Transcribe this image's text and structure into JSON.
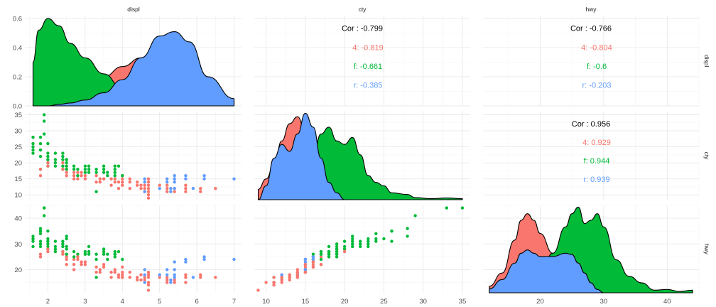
{
  "chart_data": {
    "type": "scatter",
    "title": "",
    "variables": [
      "displ",
      "cty",
      "hwy"
    ],
    "groups": [
      "4",
      "f",
      "r"
    ],
    "colors": {
      "4": "#F8766D",
      "f": "#00BA38",
      "r": "#619CFF"
    },
    "axes": {
      "displ": {
        "range": [
          1.4,
          7.2
        ],
        "ticks": [
          2,
          3,
          4,
          5,
          6,
          7
        ]
      },
      "cty": {
        "range": [
          8.5,
          36
        ],
        "ticks": [
          10,
          15,
          20,
          25,
          30,
          35
        ]
      },
      "hwy": {
        "range": [
          11,
          45
        ],
        "ticks": [
          20,
          30,
          40
        ]
      }
    },
    "density_axis": {
      "range": [
        0,
        0.62
      ],
      "ticks": [
        "0.0",
        "0.2",
        "0.4",
        "0.6"
      ]
    },
    "correlations": [
      {
        "row": "displ",
        "col": "cty",
        "overall": "Cor : -0.799",
        "groups": [
          "4: -0.819",
          "f: -0.661",
          "r: -0.385"
        ]
      },
      {
        "row": "displ",
        "col": "hwy",
        "overall": "Cor : -0.766",
        "groups": [
          "4: -0.804",
          "f: -0.6",
          "r: -0.203"
        ]
      },
      {
        "row": "cty",
        "col": "hwy",
        "overall": "Cor : 0.956",
        "groups": [
          "4: 0.929",
          "f: 0.944",
          "r: 0.939"
        ]
      }
    ],
    "densities": {
      "displ": {
        "x": [
          1.6,
          1.75,
          2.0,
          2.3,
          2.6,
          3.0,
          3.5,
          4.0,
          4.5,
          5.0,
          5.4,
          5.8,
          6.3,
          7.0
        ],
        "series": {
          "4": [
            0.01,
            0.02,
            0.04,
            0.07,
            0.1,
            0.14,
            0.2,
            0.27,
            0.33,
            0.36,
            0.35,
            0.27,
            0.14,
            0.04
          ],
          "f": [
            0.3,
            0.52,
            0.6,
            0.55,
            0.43,
            0.33,
            0.22,
            0.12,
            0.05,
            0.02,
            0.01,
            0.0,
            0.0,
            0.0
          ],
          "r": [
            0.0,
            0.0,
            0.0,
            0.01,
            0.02,
            0.04,
            0.09,
            0.18,
            0.33,
            0.48,
            0.51,
            0.44,
            0.2,
            0.05
          ]
        }
      },
      "cty": {
        "x": [
          9,
          10,
          11,
          12,
          13,
          14,
          15,
          16,
          17,
          18,
          19,
          20,
          21,
          22,
          23,
          24,
          25,
          26,
          28,
          29,
          31,
          33,
          35
        ],
        "series": {
          "4": [
            0.03,
            0.06,
            0.1,
            0.17,
            0.22,
            0.24,
            0.2,
            0.13,
            0.07,
            0.04,
            0.02,
            0.01,
            0.0,
            0.0,
            0.0,
            0.0,
            0.0,
            0.0,
            0.0,
            0.0,
            0.0,
            0.0,
            0.0
          ],
          "f": [
            0.0,
            0.0,
            0.0,
            0.0,
            0.01,
            0.03,
            0.07,
            0.13,
            0.19,
            0.21,
            0.17,
            0.16,
            0.18,
            0.13,
            0.07,
            0.05,
            0.04,
            0.02,
            0.015,
            0.006,
            0.003,
            0.005,
            0.003
          ],
          "r": [
            0.0,
            0.04,
            0.12,
            0.16,
            0.14,
            0.19,
            0.25,
            0.21,
            0.12,
            0.05,
            0.02,
            0.0,
            0.0,
            0.0,
            0.0,
            0.0,
            0.0,
            0.0,
            0.0,
            0.0,
            0.0,
            0.0,
            0.0
          ]
        }
      },
      "hwy": {
        "x": [
          12,
          14,
          16,
          17,
          18,
          19,
          20,
          22,
          24,
          25,
          26,
          27,
          28,
          29,
          30,
          32,
          34,
          36,
          38,
          40,
          42,
          44
        ],
        "series": {
          "4": [
            0.01,
            0.03,
            0.08,
            0.11,
            0.12,
            0.11,
            0.09,
            0.06,
            0.04,
            0.025,
            0.015,
            0.008,
            0.004,
            0.002,
            0.0,
            0.0,
            0.0,
            0.0,
            0.0,
            0.0,
            0.0,
            0.0
          ],
          "f": [
            0.0,
            0.0,
            0.0,
            0.005,
            0.01,
            0.02,
            0.03,
            0.06,
            0.1,
            0.12,
            0.13,
            0.105,
            0.11,
            0.12,
            0.1,
            0.05,
            0.025,
            0.015,
            0.004,
            0.005,
            0.002,
            0.004
          ],
          "r": [
            0.006,
            0.02,
            0.045,
            0.06,
            0.065,
            0.06,
            0.055,
            0.055,
            0.06,
            0.058,
            0.045,
            0.03,
            0.015,
            0.005,
            0.0,
            0.0,
            0.0,
            0.0,
            0.0,
            0.0,
            0.0,
            0.0
          ]
        }
      }
    },
    "points": [
      {
        "g": "f",
        "displ": 1.6,
        "cty": 28,
        "hwy": 33
      },
      {
        "g": "f",
        "displ": 1.6,
        "cty": 25,
        "hwy": 32
      },
      {
        "g": "f",
        "displ": 1.6,
        "cty": 24,
        "hwy": 32
      },
      {
        "g": "f",
        "displ": 1.6,
        "cty": 23,
        "hwy": 29
      },
      {
        "g": "f",
        "displ": 1.8,
        "cty": 28,
        "hwy": 36
      },
      {
        "g": "f",
        "displ": 1.8,
        "cty": 26,
        "hwy": 35
      },
      {
        "g": "f",
        "displ": 1.8,
        "cty": 24,
        "hwy": 34
      },
      {
        "g": "f",
        "displ": 1.8,
        "cty": 22,
        "hwy": 30
      },
      {
        "g": "f",
        "displ": 1.8,
        "cty": 18,
        "hwy": 29
      },
      {
        "g": "4",
        "displ": 1.8,
        "cty": 16,
        "hwy": 25
      },
      {
        "g": "4",
        "displ": 1.8,
        "cty": 18,
        "hwy": 26
      },
      {
        "g": "f",
        "displ": 1.9,
        "cty": 33,
        "hwy": 44
      },
      {
        "g": "f",
        "displ": 1.9,
        "cty": 35,
        "hwy": 44
      },
      {
        "g": "f",
        "displ": 1.9,
        "cty": 29,
        "hwy": 41
      },
      {
        "g": "f",
        "displ": 2.0,
        "cty": 21,
        "hwy": 29
      },
      {
        "g": "f",
        "displ": 2.0,
        "cty": 20,
        "hwy": 31
      },
      {
        "g": "f",
        "displ": 2.0,
        "cty": 19,
        "hwy": 28
      },
      {
        "g": "f",
        "displ": 2.0,
        "cty": 21,
        "hwy": 30
      },
      {
        "g": "4",
        "displ": 2.0,
        "cty": 19,
        "hwy": 27
      },
      {
        "g": "4",
        "displ": 2.0,
        "cty": 20,
        "hwy": 28
      },
      {
        "g": "f",
        "displ": 2.2,
        "cty": 21,
        "hwy": 29
      },
      {
        "g": "f",
        "displ": 2.2,
        "cty": 19,
        "hwy": 27
      },
      {
        "g": "f",
        "displ": 2.2,
        "cty": 20,
        "hwy": 28
      },
      {
        "g": "f",
        "displ": 2.4,
        "cty": 21,
        "hwy": 31
      },
      {
        "g": "f",
        "displ": 2.4,
        "cty": 19,
        "hwy": 30
      },
      {
        "g": "f",
        "displ": 2.4,
        "cty": 18,
        "hwy": 27
      },
      {
        "g": "4",
        "displ": 2.4,
        "cty": 20,
        "hwy": 27
      },
      {
        "g": "4",
        "displ": 2.4,
        "cty": 18,
        "hwy": 26
      },
      {
        "g": "f",
        "displ": 2.5,
        "cty": 20,
        "hwy": 29
      },
      {
        "g": "4",
        "displ": 2.5,
        "cty": 19,
        "hwy": 26
      },
      {
        "g": "4",
        "displ": 2.5,
        "cty": 18,
        "hwy": 25
      },
      {
        "g": "4",
        "displ": 2.5,
        "cty": 17,
        "hwy": 24
      },
      {
        "g": "f",
        "displ": 2.5,
        "cty": 21,
        "hwy": 33
      },
      {
        "g": "f",
        "displ": 2.7,
        "cty": 18,
        "hwy": 27
      },
      {
        "g": "4",
        "displ": 2.7,
        "cty": 16,
        "hwy": 24
      },
      {
        "g": "4",
        "displ": 2.7,
        "cty": 15,
        "hwy": 20
      },
      {
        "g": "4",
        "displ": 2.7,
        "cty": 17,
        "hwy": 22
      },
      {
        "g": "f",
        "displ": 2.8,
        "cty": 16,
        "hwy": 26
      },
      {
        "g": "f",
        "displ": 2.8,
        "cty": 18,
        "hwy": 25
      },
      {
        "g": "4",
        "displ": 2.8,
        "cty": 15,
        "hwy": 24
      },
      {
        "g": "4",
        "displ": 2.8,
        "cty": 17,
        "hwy": 25
      },
      {
        "g": "f",
        "displ": 3.0,
        "cty": 17,
        "hwy": 26
      },
      {
        "g": "f",
        "displ": 3.0,
        "cty": 18,
        "hwy": 27
      },
      {
        "g": "4",
        "displ": 3.0,
        "cty": 15,
        "hwy": 22
      },
      {
        "g": "4",
        "displ": 3.0,
        "cty": 16,
        "hwy": 23
      },
      {
        "g": "f",
        "displ": 3.1,
        "cty": 18,
        "hwy": 26
      },
      {
        "g": "f",
        "displ": 3.1,
        "cty": 17,
        "hwy": 27
      },
      {
        "g": "f",
        "displ": 3.3,
        "cty": 18,
        "hwy": 26
      },
      {
        "g": "f",
        "displ": 3.3,
        "cty": 17,
        "hwy": 24
      },
      {
        "g": "4",
        "displ": 3.3,
        "cty": 14,
        "hwy": 19
      },
      {
        "g": "4",
        "displ": 3.3,
        "cty": 16,
        "hwy": 21
      },
      {
        "g": "f",
        "displ": 3.3,
        "cty": 11,
        "hwy": 17
      },
      {
        "g": "f",
        "displ": 3.5,
        "cty": 19,
        "hwy": 28
      },
      {
        "g": "f",
        "displ": 3.5,
        "cty": 18,
        "hwy": 26
      },
      {
        "g": "4",
        "displ": 3.5,
        "cty": 15,
        "hwy": 21
      },
      {
        "g": "f",
        "displ": 3.6,
        "cty": 17,
        "hwy": 26
      },
      {
        "g": "f",
        "displ": 3.6,
        "cty": 16,
        "hwy": 24
      },
      {
        "g": "f",
        "displ": 3.8,
        "cty": 18,
        "hwy": 27
      },
      {
        "g": "f",
        "displ": 3.8,
        "cty": 17,
        "hwy": 26
      },
      {
        "g": "f",
        "displ": 3.8,
        "cty": 16,
        "hwy": 25
      },
      {
        "g": "4",
        "displ": 3.8,
        "cty": 15,
        "hwy": 20
      },
      {
        "g": "4",
        "displ": 3.8,
        "cty": 14,
        "hwy": 19
      },
      {
        "g": "f",
        "displ": 3.9,
        "cty": 19,
        "hwy": 27
      },
      {
        "g": "4",
        "displ": 4.0,
        "cty": 15,
        "hwy": 19
      },
      {
        "g": "4",
        "displ": 4.0,
        "cty": 14,
        "hwy": 18
      },
      {
        "g": "4",
        "displ": 4.0,
        "cty": 16,
        "hwy": 21
      },
      {
        "g": "4",
        "displ": 4.0,
        "cty": 13,
        "hwy": 17
      },
      {
        "g": "f",
        "displ": 4.0,
        "cty": 16,
        "hwy": 24
      },
      {
        "g": "4",
        "displ": 4.2,
        "cty": 14,
        "hwy": 17
      },
      {
        "g": "4",
        "displ": 4.2,
        "cty": 15,
        "hwy": 19
      },
      {
        "g": "4",
        "displ": 4.4,
        "cty": 13,
        "hwy": 16
      },
      {
        "g": "4",
        "displ": 4.4,
        "cty": 14,
        "hwy": 17
      },
      {
        "g": "4",
        "displ": 4.6,
        "cty": 11,
        "hwy": 15
      },
      {
        "g": "4",
        "displ": 4.6,
        "cty": 12,
        "hwy": 16
      },
      {
        "g": "4",
        "displ": 4.6,
        "cty": 13,
        "hwy": 17
      },
      {
        "g": "r",
        "displ": 4.6,
        "cty": 15,
        "hwy": 20
      },
      {
        "g": "r",
        "displ": 4.6,
        "cty": 14,
        "hwy": 18
      },
      {
        "g": "4",
        "displ": 4.7,
        "cty": 9,
        "hwy": 12
      },
      {
        "g": "4",
        "displ": 4.7,
        "cty": 11,
        "hwy": 14
      },
      {
        "g": "4",
        "displ": 4.7,
        "cty": 12,
        "hwy": 15
      },
      {
        "g": "4",
        "displ": 4.7,
        "cty": 13,
        "hwy": 17
      },
      {
        "g": "4",
        "displ": 4.7,
        "cty": 14,
        "hwy": 18
      },
      {
        "g": "4",
        "displ": 4.7,
        "cty": 15,
        "hwy": 19
      },
      {
        "g": "r",
        "displ": 4.6,
        "cty": 11,
        "hwy": 15
      },
      {
        "g": "4",
        "displ": 5.2,
        "cty": 11,
        "hwy": 15
      },
      {
        "g": "4",
        "displ": 5.2,
        "cty": 12,
        "hwy": 16
      },
      {
        "g": "4",
        "displ": 5.2,
        "cty": 13,
        "hwy": 17
      },
      {
        "g": "r",
        "displ": 5.2,
        "cty": 15,
        "hwy": 20
      },
      {
        "g": "r",
        "displ": 5.2,
        "cty": 14,
        "hwy": 18
      },
      {
        "g": "r",
        "displ": 5.3,
        "cty": 11,
        "hwy": 15
      },
      {
        "g": "r",
        "displ": 5.3,
        "cty": 12,
        "hwy": 16
      },
      {
        "g": "4",
        "displ": 5.4,
        "cty": 11,
        "hwy": 15
      },
      {
        "g": "4",
        "displ": 5.4,
        "cty": 12,
        "hwy": 16
      },
      {
        "g": "r",
        "displ": 5.4,
        "cty": 14,
        "hwy": 18
      },
      {
        "g": "r",
        "displ": 5.4,
        "cty": 12,
        "hwy": 17
      },
      {
        "g": "r",
        "displ": 5.4,
        "cty": 15,
        "hwy": 20
      },
      {
        "g": "r",
        "displ": 5.4,
        "cty": 16,
        "hwy": 23
      },
      {
        "g": "4",
        "displ": 5.7,
        "cty": 11,
        "hwy": 15
      },
      {
        "g": "4",
        "displ": 5.7,
        "cty": 13,
        "hwy": 18
      },
      {
        "g": "r",
        "displ": 5.7,
        "cty": 16,
        "hwy": 24
      },
      {
        "g": "r",
        "displ": 5.7,
        "cty": 15,
        "hwy": 23
      },
      {
        "g": "r",
        "displ": 5.9,
        "cty": 12,
        "hwy": 17
      },
      {
        "g": "4",
        "displ": 6.1,
        "cty": 11,
        "hwy": 17
      },
      {
        "g": "4",
        "displ": 6.1,
        "cty": 12,
        "hwy": 18
      },
      {
        "g": "r",
        "displ": 6.2,
        "cty": 16,
        "hwy": 25
      },
      {
        "g": "r",
        "displ": 6.2,
        "cty": 15,
        "hwy": 24
      },
      {
        "g": "4",
        "displ": 6.5,
        "cty": 12,
        "hwy": 17
      },
      {
        "g": "r",
        "displ": 7.0,
        "cty": 15,
        "hwy": 24
      },
      {
        "g": "4",
        "displ": 4.0,
        "cty": 14,
        "hwy": 17
      },
      {
        "g": "4",
        "displ": 4.5,
        "cty": 13,
        "hwy": 18
      },
      {
        "g": "4",
        "displ": 4.5,
        "cty": 12,
        "hwy": 16
      },
      {
        "g": "4",
        "displ": 3.5,
        "cty": 15,
        "hwy": 22
      },
      {
        "g": "4",
        "displ": 3.7,
        "cty": 13,
        "hwy": 17
      },
      {
        "g": "4",
        "displ": 3.7,
        "cty": 15,
        "hwy": 19
      },
      {
        "g": "4",
        "displ": 3.9,
        "cty": 14,
        "hwy": 18
      },
      {
        "g": "4",
        "displ": 3.9,
        "cty": 12,
        "hwy": 17
      },
      {
        "g": "4",
        "displ": 3.4,
        "cty": 15,
        "hwy": 19
      },
      {
        "g": "4",
        "displ": 3.4,
        "cty": 14,
        "hwy": 20
      },
      {
        "g": "4",
        "displ": 2.9,
        "cty": 17,
        "hwy": 22
      },
      {
        "g": "4",
        "displ": 2.9,
        "cty": 16,
        "hwy": 23
      },
      {
        "g": "f",
        "displ": 2.5,
        "cty": 19,
        "hwy": 28
      },
      {
        "g": "f",
        "displ": 2.5,
        "cty": 21,
        "hwy": 32
      },
      {
        "g": "f",
        "displ": 2.0,
        "cty": 23,
        "hwy": 32
      },
      {
        "g": "f",
        "displ": 2.0,
        "cty": 22,
        "hwy": 31
      },
      {
        "g": "f",
        "displ": 1.8,
        "cty": 24,
        "hwy": 31
      },
      {
        "g": "f",
        "displ": 2.4,
        "cty": 22,
        "hwy": 29
      },
      {
        "g": "f",
        "displ": 2.7,
        "cty": 19,
        "hwy": 25
      },
      {
        "g": "f",
        "displ": 3.0,
        "cty": 19,
        "hwy": 26
      },
      {
        "g": "f",
        "displ": 3.8,
        "cty": 19,
        "hwy": 26
      },
      {
        "g": "4",
        "displ": 4.2,
        "cty": 12,
        "hwy": 17
      },
      {
        "g": "4",
        "displ": 4.7,
        "cty": 10,
        "hwy": 15
      },
      {
        "g": "4",
        "displ": 5.0,
        "cty": 13,
        "hwy": 17
      },
      {
        "g": "r",
        "displ": 5.0,
        "cty": 12,
        "hwy": 18
      },
      {
        "g": "4",
        "displ": 5.7,
        "cty": 12,
        "hwy": 17
      },
      {
        "g": "f",
        "displ": 1.6,
        "cty": 26,
        "hwy": 31
      },
      {
        "g": "f",
        "displ": 2.0,
        "cty": 26,
        "hwy": 35
      },
      {
        "g": "f",
        "displ": 2.2,
        "cty": 23,
        "hwy": 31
      },
      {
        "g": "f",
        "displ": 2.4,
        "cty": 23,
        "hwy": 30
      },
      {
        "g": "f",
        "displ": 2.5,
        "cty": 18,
        "hwy": 26
      },
      {
        "g": "4",
        "displ": 2.5,
        "cty": 16,
        "hwy": 22
      },
      {
        "g": "f",
        "displ": 3.1,
        "cty": 19,
        "hwy": 29
      },
      {
        "g": "f",
        "displ": 3.5,
        "cty": 17,
        "hwy": 27
      }
    ]
  }
}
